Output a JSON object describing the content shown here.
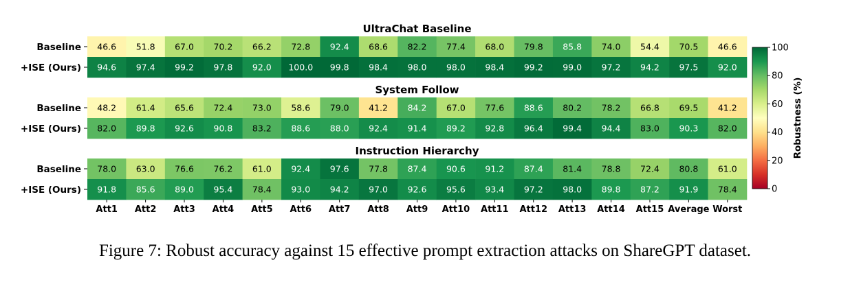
{
  "caption": "Figure 7:  Robust accuracy against 15 effective prompt extraction attacks on ShareGPT dataset.",
  "chart_data": {
    "type": "heatmap",
    "columns": [
      "Att1",
      "Att2",
      "Att3",
      "Att4",
      "Att5",
      "Att6",
      "Att7",
      "Att8",
      "Att9",
      "Att10",
      "Att11",
      "Att12",
      "Att13",
      "Att14",
      "Att15",
      "Average",
      "Worst"
    ],
    "row_labels": [
      "Baseline",
      "+ISE (Ours)"
    ],
    "colorbar": {
      "label": "Robustness (%)",
      "range": [
        0,
        100
      ],
      "ticks": [
        0,
        20,
        40,
        60,
        80,
        100
      ],
      "colormap": "RdYlGn"
    },
    "panels": [
      {
        "title": "UltraChat Baseline",
        "rows": [
          {
            "label": "Baseline",
            "values": [
              46.6,
              51.8,
              67.0,
              70.2,
              66.2,
              72.8,
              92.4,
              68.6,
              82.2,
              77.4,
              68.0,
              79.8,
              85.8,
              74.0,
              54.4,
              70.5,
              46.6
            ]
          },
          {
            "label": "+ISE (Ours)",
            "values": [
              94.6,
              97.4,
              99.2,
              97.8,
              92.0,
              100.0,
              99.8,
              98.4,
              98.0,
              98.0,
              98.4,
              99.2,
              99.0,
              97.2,
              94.2,
              97.5,
              92.0
            ]
          }
        ]
      },
      {
        "title": "System Follow",
        "rows": [
          {
            "label": "Baseline",
            "values": [
              48.2,
              61.4,
              65.6,
              72.4,
              73.0,
              58.6,
              79.0,
              41.2,
              84.2,
              67.0,
              77.6,
              88.6,
              80.2,
              78.2,
              66.8,
              69.5,
              41.2
            ]
          },
          {
            "label": "+ISE (Ours)",
            "values": [
              82.0,
              89.8,
              92.6,
              90.8,
              83.2,
              88.6,
              88.0,
              92.4,
              91.4,
              89.2,
              92.8,
              96.4,
              99.4,
              94.4,
              83.0,
              90.3,
              82.0
            ]
          }
        ]
      },
      {
        "title": "Instruction Hierarchy",
        "rows": [
          {
            "label": "Baseline",
            "values": [
              78.0,
              63.0,
              76.6,
              76.2,
              61.0,
              92.4,
              97.6,
              77.8,
              87.4,
              90.6,
              91.2,
              87.4,
              81.4,
              78.8,
              72.4,
              80.8,
              61.0
            ]
          },
          {
            "label": "+ISE (Ours)",
            "values": [
              91.8,
              85.6,
              89.0,
              95.4,
              78.4,
              93.0,
              94.2,
              97.0,
              92.6,
              95.6,
              93.4,
              97.2,
              98.0,
              89.8,
              87.2,
              91.9,
              78.4
            ]
          }
        ]
      }
    ]
  }
}
